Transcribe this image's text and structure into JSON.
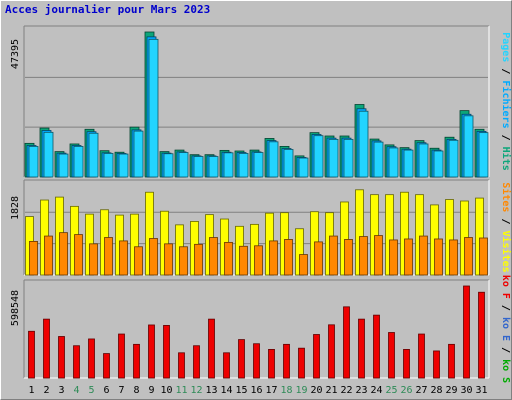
{
  "title": "Acces journalier pour Mars 2023",
  "colors": {
    "background": "#c0c0c0",
    "title": "#0000cc",
    "hits": "#0ca67a",
    "files": "#00aaff",
    "pages": "#22d4ff",
    "visits": "#ffff00",
    "sites": "#ff8800",
    "kbytes": "#ee0000",
    "separator": "#000000",
    "axis_label_dark": "#000000"
  },
  "chart_data": [
    {
      "type": "bar",
      "name": "top",
      "categories": [
        "1",
        "2",
        "3",
        "4",
        "5",
        "6",
        "7",
        "8",
        "9",
        "10",
        "11",
        "12",
        "13",
        "14",
        "15",
        "16",
        "17",
        "18",
        "19",
        "20",
        "21",
        "22",
        "23",
        "24",
        "25",
        "26",
        "27",
        "28",
        "29",
        "30",
        "31"
      ],
      "ylabel_max": "47395",
      "ylim": [
        0,
        47395
      ],
      "grid": true,
      "right_label": [
        {
          "text": "Pages",
          "color": "#22d4ff"
        },
        {
          "text": " / ",
          "color": "#000000"
        },
        {
          "text": "Fichiers",
          "color": "#00aaff"
        },
        {
          "text": " / ",
          "color": "#000000"
        },
        {
          "text": "Hits",
          "color": "#0ca67a"
        }
      ],
      "series": [
        {
          "key": "hits",
          "values": [
            11000,
            16000,
            8300,
            10800,
            15600,
            8600,
            8100,
            16300,
            47395,
            8300,
            8800,
            7300,
            7300,
            8700,
            8500,
            8800,
            12600,
            10000,
            6900,
            14500,
            13400,
            13400,
            23700,
            12400,
            10500,
            9600,
            11900,
            9400,
            13000,
            21700,
            15600
          ]
        },
        {
          "key": "files",
          "values": [
            10300,
            15200,
            7800,
            10300,
            14800,
            7900,
            7700,
            15400,
            45800,
            7800,
            8200,
            6900,
            6900,
            8100,
            8000,
            8200,
            11900,
            9300,
            6400,
            13900,
            12700,
            12700,
            22300,
            11800,
            9900,
            9100,
            11200,
            8800,
            12300,
            20500,
            14900
          ]
        },
        {
          "key": "pages",
          "values": [
            10000,
            14600,
            7500,
            10000,
            14300,
            7700,
            7500,
            15000,
            45000,
            7600,
            8000,
            6700,
            6700,
            7900,
            7700,
            8000,
            11500,
            9000,
            6200,
            13500,
            12300,
            12300,
            21500,
            11400,
            9500,
            8800,
            10800,
            8500,
            12000,
            20000,
            14500
          ]
        }
      ]
    },
    {
      "type": "bar",
      "name": "middle",
      "categories": [
        "1",
        "2",
        "3",
        "4",
        "5",
        "6",
        "7",
        "8",
        "9",
        "10",
        "11",
        "12",
        "13",
        "14",
        "15",
        "16",
        "17",
        "18",
        "19",
        "20",
        "21",
        "22",
        "23",
        "24",
        "25",
        "26",
        "27",
        "28",
        "29",
        "30",
        "31"
      ],
      "ylabel_max": "1828",
      "ylim": [
        0,
        1828
      ],
      "grid": true,
      "right_label": [
        {
          "text": "Sites",
          "color": "#ff8800"
        },
        {
          "text": " / ",
          "color": "#000000"
        },
        {
          "text": "Visites",
          "color": "#ffff00"
        }
      ],
      "series": [
        {
          "key": "visits",
          "values": [
            1200,
            1540,
            1600,
            1410,
            1250,
            1340,
            1230,
            1250,
            1700,
            1310,
            1030,
            1100,
            1240,
            1150,
            1000,
            1040,
            1270,
            1280,
            950,
            1300,
            1280,
            1500,
            1750,
            1650,
            1650,
            1700,
            1650,
            1440,
            1550,
            1520,
            1580
          ]
        },
        {
          "key": "sites",
          "values": [
            690,
            800,
            870,
            830,
            640,
            770,
            700,
            580,
            750,
            640,
            580,
            630,
            770,
            670,
            590,
            600,
            700,
            730,
            420,
            680,
            800,
            730,
            790,
            810,
            720,
            740,
            800,
            740,
            720,
            770,
            760
          ]
        }
      ]
    },
    {
      "type": "bar",
      "name": "bottom",
      "categories": [
        "1",
        "2",
        "3",
        "4",
        "5",
        "6",
        "7",
        "8",
        "9",
        "10",
        "11",
        "12",
        "13",
        "14",
        "15",
        "16",
        "17",
        "18",
        "19",
        "20",
        "21",
        "22",
        "23",
        "24",
        "25",
        "26",
        "27",
        "28",
        "29",
        "30",
        "31"
      ],
      "ylabel_max": "598548",
      "ylim": [
        0,
        598548
      ],
      "grid": false,
      "right_label": [
        {
          "text": "ko F",
          "color": "#ee0000"
        },
        {
          "text": " / ",
          "color": "#000000"
        },
        {
          "text": "ko E",
          "color": "#3366cc"
        },
        {
          "text": " / ",
          "color": "#000000"
        },
        {
          "text": "ko S",
          "color": "#00aa00"
        }
      ],
      "series": [
        {
          "key": "kbytes",
          "values": [
            304000,
            383000,
            270000,
            210000,
            254000,
            159000,
            286000,
            219000,
            345000,
            342000,
            164000,
            210000,
            383000,
            164000,
            250000,
            223000,
            186000,
            219000,
            194000,
            283000,
            346000,
            463000,
            383000,
            409000,
            296000,
            186000,
            286000,
            176000,
            219000,
            598548,
            558000
          ]
        }
      ]
    }
  ],
  "x_tick_labels": [
    "1",
    "2",
    "3",
    "4",
    "5",
    "6",
    "7",
    "8",
    "9",
    "10",
    "11",
    "12",
    "13",
    "14",
    "15",
    "16",
    "17",
    "18",
    "19",
    "20",
    "21",
    "22",
    "23",
    "24",
    "25",
    "26",
    "27",
    "28",
    "29",
    "30",
    "31"
  ],
  "weekend_days": [
    "4",
    "5",
    "11",
    "12",
    "18",
    "19",
    "25",
    "26"
  ],
  "weekend_label_color": "#2e8b57"
}
